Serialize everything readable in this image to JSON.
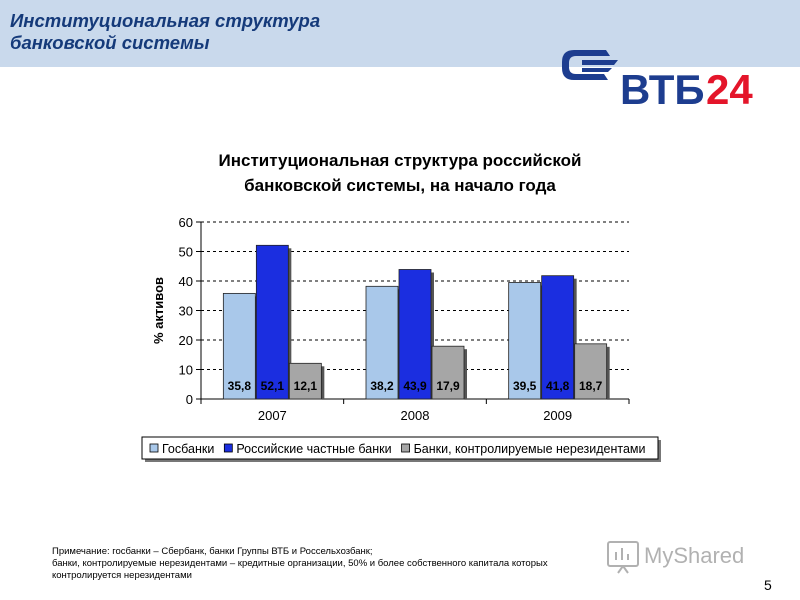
{
  "slide": {
    "title_line1": "Институциональная структура",
    "title_line2": "банковской системы",
    "page_number": "5",
    "logo_text": "ВТБ24",
    "watermark_text": "MyShared",
    "note": {
      "line1": "Примечание: госбанки – Сбербанк, банки Группы ВТБ и Россельхозбанк;",
      "line2": "банки, контролируемые нерезидентами – кредитные организации, 50% и более собственного капитала которых",
      "line3": "контролируется нерезидентами"
    }
  },
  "colors": {
    "header_band": "#c9d9ec",
    "header_text": "#153a7a",
    "logo_blue": "#1d3d8f",
    "logo_red": "#e4152a",
    "series": [
      "#a9c8ea",
      "#1b2ee0",
      "#a6a6a6"
    ]
  },
  "chart_data": {
    "type": "bar",
    "title_line1": "Институциональная структура российской",
    "title_line2": "банковской системы, на начало года",
    "ylabel": "% активов",
    "xlabel": "",
    "categories": [
      "2007",
      "2008",
      "2009"
    ],
    "ylim": [
      0,
      60
    ],
    "yticks": [
      0,
      10,
      20,
      30,
      40,
      50,
      60
    ],
    "grid": "horizontal dashed",
    "legend_position": "bottom",
    "series": [
      {
        "name": "Госбанки",
        "values": [
          35.8,
          38.2,
          39.5
        ],
        "labels": [
          "35,8",
          "38,2",
          "39,5"
        ]
      },
      {
        "name": "Российские частные банки",
        "values": [
          52.1,
          43.9,
          41.8
        ],
        "labels": [
          "52,1",
          "43,9",
          "41,8"
        ]
      },
      {
        "name": "Банки, контролируемые нерезидентами",
        "values": [
          12.1,
          17.9,
          18.7
        ],
        "labels": [
          "12,1",
          "17,9",
          "18,7"
        ]
      }
    ]
  }
}
